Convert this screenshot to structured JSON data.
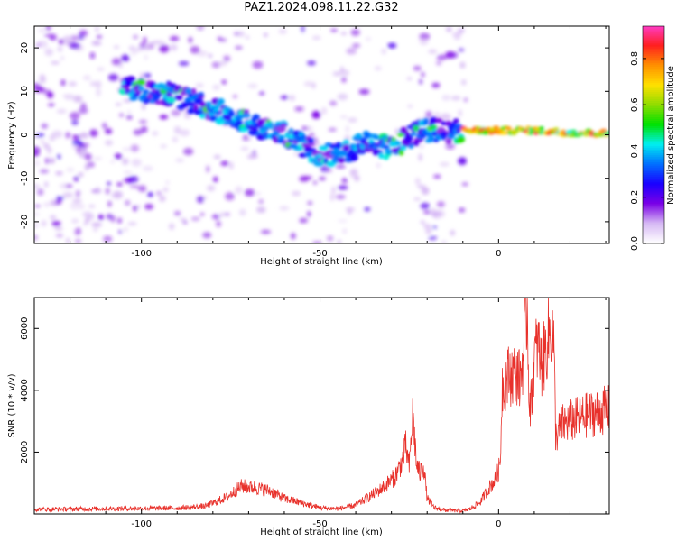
{
  "title": "PAZ1.2024.098.11.22.G32",
  "chart_data": [
    {
      "type": "heatmap",
      "xlabel": "Height of straight line (km)",
      "ylabel": "Frequency (Hz)",
      "xlim": [
        -130,
        31
      ],
      "ylim": [
        -25,
        25
      ],
      "xticks": [
        -100,
        -50,
        0
      ],
      "yticks": [
        -20,
        -10,
        0,
        10,
        20
      ],
      "xtick_labels": [
        "-100",
        "-50",
        "0"
      ],
      "ytick_labels": [
        "-20",
        "-10",
        "0",
        "10",
        "20"
      ],
      "colormap": "hsv-like (white/violet → blue → cyan → green → yellow → orange → red)",
      "ridge": {
        "x": [
          -105,
          -97,
          -90,
          -80,
          -70,
          -60,
          -52,
          -45,
          -38,
          -30,
          -22,
          -14,
          -8,
          0,
          10,
          20,
          31
        ],
        "y": [
          11,
          10,
          9,
          6,
          3,
          0,
          -4,
          -5,
          -2,
          -3,
          1,
          1,
          1,
          1,
          1,
          0.5,
          0.3
        ],
        "peak_amplitude_from_x": -10
      },
      "colorbar": {
        "label": "Normalized spectral amplitude",
        "range": [
          0,
          0.94
        ],
        "ticks": [
          0.0,
          0.2,
          0.4,
          0.6,
          0.8
        ],
        "tick_labels": [
          "0.0",
          "0.2",
          "0.4",
          "0.6",
          "0.8"
        ],
        "colors": [
          "#ffffff",
          "#d6b8f4",
          "#7a00e6",
          "#1a00ff",
          "#0070ff",
          "#00f0f0",
          "#00e100",
          "#8fdc00",
          "#ffe000",
          "#ff9000",
          "#ff1f1f",
          "#ff3cc8"
        ]
      }
    },
    {
      "type": "line",
      "xlabel": "Height of straight line (km)",
      "ylabel": "SNR (10 * v/v)",
      "xlim": [
        -130,
        31
      ],
      "ylim": [
        0,
        7000
      ],
      "xticks": [
        -100,
        -50,
        0
      ],
      "yticks": [
        2000,
        4000,
        6000
      ],
      "xtick_labels": [
        "-100",
        "-50",
        "0"
      ],
      "ytick_labels": [
        "2000",
        "4000",
        "6000"
      ],
      "line_color": "#e8312b",
      "x": [
        -130,
        -110,
        -100,
        -90,
        -82,
        -76,
        -72,
        -68,
        -64,
        -60,
        -55,
        -50,
        -45,
        -40,
        -37,
        -33,
        -29,
        -27,
        -26,
        -25,
        -24,
        -23,
        -22,
        -21,
        -20,
        -18,
        -15,
        -10,
        -8,
        -5,
        -3,
        -1,
        0,
        0.5,
        1,
        3,
        5,
        6,
        7,
        8,
        8.5,
        9,
        10,
        11,
        12,
        13,
        14,
        15,
        15.5,
        16,
        18,
        20,
        25,
        31
      ],
      "y": [
        150,
        170,
        180,
        190,
        250,
        550,
        900,
        850,
        750,
        500,
        350,
        200,
        170,
        280,
        500,
        800,
        1200,
        1700,
        2200,
        1500,
        3300,
        1600,
        1300,
        1600,
        500,
        200,
        120,
        100,
        160,
        400,
        800,
        1100,
        1400,
        1700,
        4200,
        4500,
        4600,
        4300,
        5200,
        6800,
        4100,
        3400,
        5000,
        5500,
        4800,
        5200,
        5800,
        6000,
        5300,
        2500,
        2900,
        3000,
        3200,
        3400
      ]
    }
  ]
}
